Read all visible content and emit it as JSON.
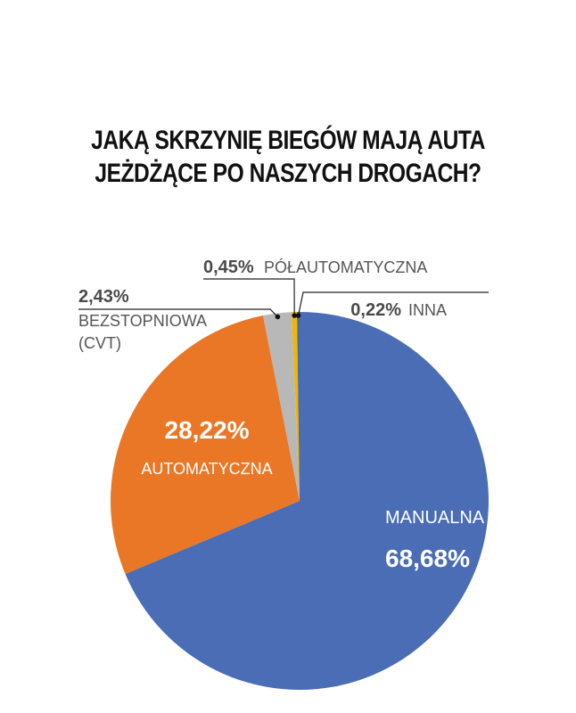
{
  "title": {
    "line1": "JAKĄ SKRZYNIĘ BIEGÓW MAJĄ AUTA",
    "line2": "JEŻDŻĄCE PO NASZYCH DROGACH?"
  },
  "chart_data": {
    "type": "pie",
    "title": "JAKĄ SKRZYNIĘ BIEGÓW MAJĄ AUTA JEŻDŻĄCE PO NASZYCH DROGACH?",
    "slices": [
      {
        "label": "MANUALNA",
        "value": 68.68,
        "display": "68,68%",
        "color": "#4b6db5"
      },
      {
        "label": "AUTOMATYCZNA",
        "value": 28.22,
        "display": "28,22%",
        "color": "#e97726"
      },
      {
        "label": "BEZSTOPNIOWA (CVT)",
        "label_lines": [
          "BEZSTOPNIOWA",
          "(CVT)"
        ],
        "value": 2.43,
        "display": "2,43%",
        "color": "#b8b8b8"
      },
      {
        "label": "PÓŁAUTOMATYCZNA",
        "value": 0.45,
        "display": "0,45%",
        "color": "#f4b400"
      },
      {
        "label": "INNA",
        "value": 0.22,
        "display": "0,22%",
        "color": "#3f6fa8"
      }
    ],
    "start": "12 o'clock",
    "direction": "clockwise"
  }
}
